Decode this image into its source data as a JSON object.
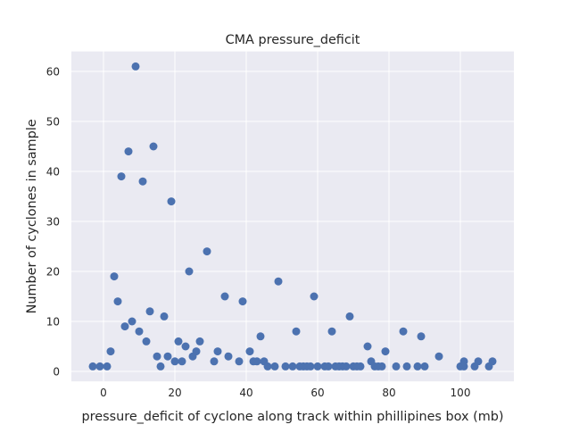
{
  "chart_data": {
    "type": "scatter",
    "title": "CMA pressure_deficit",
    "xlabel": "pressure_deficit of cyclone along track within phillipines box (mb)",
    "ylabel": "Number of cyclones in sample",
    "xlim": [
      -9,
      115
    ],
    "ylim": [
      -2,
      64
    ],
    "xticks": [
      0,
      20,
      40,
      60,
      80,
      100
    ],
    "yticks": [
      0,
      10,
      20,
      30,
      40,
      50,
      60
    ],
    "grid": true,
    "colors": {
      "background": "#eaeaf2",
      "grid": "#ffffff",
      "marker": "#4c72b0",
      "text": "#262626"
    },
    "points": [
      {
        "x": -3,
        "y": 1
      },
      {
        "x": -1,
        "y": 1
      },
      {
        "x": 1,
        "y": 1
      },
      {
        "x": 2,
        "y": 4
      },
      {
        "x": 3,
        "y": 19
      },
      {
        "x": 4,
        "y": 14
      },
      {
        "x": 5,
        "y": 39
      },
      {
        "x": 6,
        "y": 9
      },
      {
        "x": 7,
        "y": 44
      },
      {
        "x": 8,
        "y": 10
      },
      {
        "x": 9,
        "y": 61
      },
      {
        "x": 10,
        "y": 8
      },
      {
        "x": 11,
        "y": 38
      },
      {
        "x": 12,
        "y": 6
      },
      {
        "x": 13,
        "y": 12
      },
      {
        "x": 14,
        "y": 45
      },
      {
        "x": 15,
        "y": 3
      },
      {
        "x": 16,
        "y": 1
      },
      {
        "x": 17,
        "y": 11
      },
      {
        "x": 18,
        "y": 3
      },
      {
        "x": 19,
        "y": 34
      },
      {
        "x": 20,
        "y": 2
      },
      {
        "x": 21,
        "y": 6
      },
      {
        "x": 22,
        "y": 2
      },
      {
        "x": 23,
        "y": 5
      },
      {
        "x": 24,
        "y": 20
      },
      {
        "x": 25,
        "y": 3
      },
      {
        "x": 26,
        "y": 4
      },
      {
        "x": 27,
        "y": 6
      },
      {
        "x": 29,
        "y": 24
      },
      {
        "x": 31,
        "y": 2
      },
      {
        "x": 32,
        "y": 4
      },
      {
        "x": 34,
        "y": 15
      },
      {
        "x": 35,
        "y": 3
      },
      {
        "x": 38,
        "y": 2
      },
      {
        "x": 39,
        "y": 14
      },
      {
        "x": 41,
        "y": 4
      },
      {
        "x": 42,
        "y": 2
      },
      {
        "x": 43,
        "y": 2
      },
      {
        "x": 44,
        "y": 7
      },
      {
        "x": 45,
        "y": 2
      },
      {
        "x": 46,
        "y": 1
      },
      {
        "x": 48,
        "y": 1
      },
      {
        "x": 49,
        "y": 18
      },
      {
        "x": 51,
        "y": 1
      },
      {
        "x": 53,
        "y": 1
      },
      {
        "x": 54,
        "y": 8
      },
      {
        "x": 55,
        "y": 1
      },
      {
        "x": 56,
        "y": 1
      },
      {
        "x": 57,
        "y": 1
      },
      {
        "x": 58,
        "y": 1
      },
      {
        "x": 59,
        "y": 15
      },
      {
        "x": 60,
        "y": 1
      },
      {
        "x": 62,
        "y": 1
      },
      {
        "x": 63,
        "y": 1
      },
      {
        "x": 64,
        "y": 8
      },
      {
        "x": 65,
        "y": 1
      },
      {
        "x": 66,
        "y": 1
      },
      {
        "x": 67,
        "y": 1
      },
      {
        "x": 68,
        "y": 1
      },
      {
        "x": 69,
        "y": 11
      },
      {
        "x": 70,
        "y": 1
      },
      {
        "x": 71,
        "y": 1
      },
      {
        "x": 72,
        "y": 1
      },
      {
        "x": 74,
        "y": 5
      },
      {
        "x": 75,
        "y": 2
      },
      {
        "x": 76,
        "y": 1
      },
      {
        "x": 77,
        "y": 1
      },
      {
        "x": 78,
        "y": 1
      },
      {
        "x": 79,
        "y": 4
      },
      {
        "x": 82,
        "y": 1
      },
      {
        "x": 84,
        "y": 8
      },
      {
        "x": 85,
        "y": 1
      },
      {
        "x": 88,
        "y": 1
      },
      {
        "x": 89,
        "y": 7
      },
      {
        "x": 90,
        "y": 1
      },
      {
        "x": 94,
        "y": 3
      },
      {
        "x": 100,
        "y": 1
      },
      {
        "x": 101,
        "y": 1
      },
      {
        "x": 101,
        "y": 2
      },
      {
        "x": 104,
        "y": 1
      },
      {
        "x": 105,
        "y": 2
      },
      {
        "x": 108,
        "y": 1
      },
      {
        "x": 109,
        "y": 2
      }
    ]
  }
}
